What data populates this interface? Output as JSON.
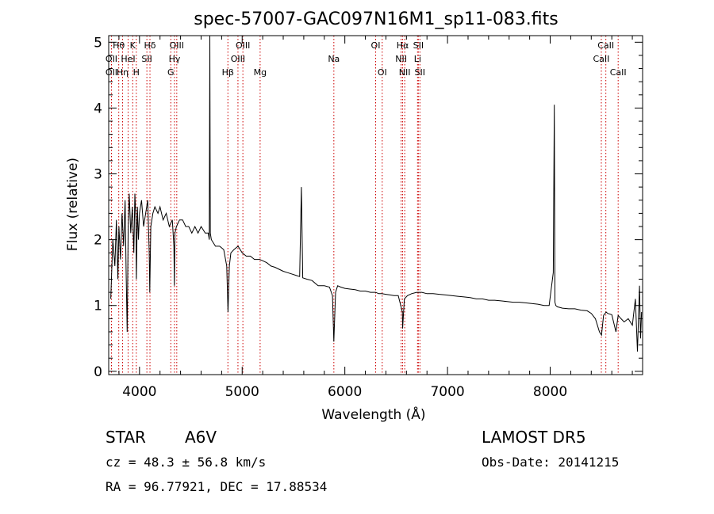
{
  "title": "spec-57007-GAC097N16M1_sp11-083.fits",
  "info": {
    "class_label": "STAR",
    "subclass_label": "A6V",
    "survey": "LAMOST DR5",
    "cz": "cz = 48.3 ± 56.8 km/s",
    "obs_date": "Obs-Date: 20141215",
    "coords": "RA =  96.77921, DEC =  17.88534"
  },
  "colors": {
    "spectrum": "#000000",
    "line_marker": "#cc0000"
  },
  "chart_data": {
    "type": "line",
    "title": "spec-57007-GAC097N16M1_sp11-083.fits",
    "xlabel": "Wavelength (Å)",
    "ylabel": "Flux (relative)",
    "xlim": [
      3700,
      8900
    ],
    "ylim": [
      -0.05,
      5.1
    ],
    "xticks": [
      4000,
      5000,
      6000,
      7000,
      8000
    ],
    "yticks": [
      0,
      1,
      2,
      3,
      4,
      5
    ],
    "grid": false,
    "spectrum": {
      "x": [
        3720,
        3740,
        3760,
        3775,
        3790,
        3800,
        3815,
        3830,
        3845,
        3860,
        3870,
        3880,
        3890,
        3900,
        3915,
        3930,
        3945,
        3955,
        3965,
        3970,
        3980,
        3990,
        4000,
        4020,
        4040,
        4060,
        4080,
        4095,
        4100,
        4110,
        4130,
        4150,
        4180,
        4200,
        4230,
        4260,
        4290,
        4320,
        4335,
        4340,
        4345,
        4360,
        4390,
        4420,
        4450,
        4480,
        4510,
        4540,
        4570,
        4600,
        4640,
        4670,
        4680,
        4685,
        4690,
        4700,
        4740,
        4780,
        4820,
        4850,
        4862,
        4875,
        4890,
        4920,
        4960,
        5000,
        5040,
        5080,
        5120,
        5170,
        5200,
        5240,
        5280,
        5320,
        5360,
        5400,
        5440,
        5480,
        5520,
        5560,
        5577,
        5590,
        5630,
        5680,
        5740,
        5800,
        5850,
        5880,
        5893,
        5910,
        5930,
        5960,
        6000,
        6050,
        6100,
        6150,
        6200,
        6250,
        6300,
        6330,
        6360,
        6400,
        6440,
        6480,
        6520,
        6560,
        6563,
        6580,
        6610,
        6650,
        6700,
        6750,
        6800,
        6860,
        6920,
        6980,
        7040,
        7100,
        7160,
        7220,
        7280,
        7340,
        7400,
        7460,
        7520,
        7580,
        7640,
        7700,
        7760,
        7820,
        7880,
        7940,
        7990,
        8030,
        8040,
        8046,
        8055,
        8070,
        8120,
        8180,
        8240,
        8300,
        8360,
        8400,
        8440,
        8480,
        8500,
        8520,
        8545,
        8560,
        8600,
        8640,
        8662,
        8690,
        8720,
        8760,
        8800,
        8830,
        8850,
        8870,
        8880,
        8890
      ],
      "y": [
        1.1,
        2.0,
        1.6,
        2.3,
        1.4,
        2.2,
        1.7,
        2.4,
        1.9,
        2.6,
        1.5,
        0.6,
        2.2,
        2.7,
        2.1,
        2.5,
        1.8,
        2.7,
        2.3,
        1.4,
        2.5,
        2.0,
        2.4,
        2.6,
        2.2,
        2.4,
        2.6,
        1.8,
        1.2,
        2.2,
        2.4,
        2.5,
        2.4,
        2.5,
        2.3,
        2.4,
        2.2,
        2.3,
        1.9,
        1.3,
        2.1,
        2.2,
        2.3,
        2.3,
        2.2,
        2.2,
        2.1,
        2.2,
        2.1,
        2.2,
        2.1,
        2.1,
        2.0,
        5.1,
        2.1,
        2.0,
        1.9,
        1.9,
        1.85,
        1.6,
        0.9,
        1.6,
        1.8,
        1.85,
        1.9,
        1.8,
        1.75,
        1.75,
        1.7,
        1.7,
        1.68,
        1.65,
        1.6,
        1.58,
        1.55,
        1.52,
        1.5,
        1.48,
        1.46,
        1.44,
        2.8,
        1.42,
        1.4,
        1.38,
        1.3,
        1.3,
        1.28,
        1.15,
        0.45,
        1.2,
        1.3,
        1.28,
        1.26,
        1.25,
        1.24,
        1.22,
        1.22,
        1.2,
        1.2,
        1.18,
        1.18,
        1.17,
        1.16,
        1.15,
        1.15,
        0.9,
        0.65,
        1.1,
        1.15,
        1.18,
        1.2,
        1.2,
        1.18,
        1.18,
        1.17,
        1.16,
        1.15,
        1.14,
        1.13,
        1.12,
        1.1,
        1.1,
        1.08,
        1.08,
        1.07,
        1.06,
        1.05,
        1.05,
        1.04,
        1.03,
        1.02,
        1.0,
        1.0,
        1.5,
        4.05,
        1.05,
        1.0,
        0.98,
        0.96,
        0.95,
        0.95,
        0.93,
        0.92,
        0.88,
        0.8,
        0.6,
        0.55,
        0.85,
        0.9,
        0.88,
        0.86,
        0.6,
        0.85,
        0.8,
        0.75,
        0.8,
        0.7,
        1.1,
        0.3,
        1.3,
        0.5,
        0.9
      ]
    },
    "line_markers": [
      {
        "label": "Hθ",
        "x": 3798,
        "row": 0
      },
      {
        "label": "OII",
        "x": 3727,
        "row": 1
      },
      {
        "label": "OII",
        "x": 3727,
        "row": 2
      },
      {
        "label": "Hη",
        "x": 3835,
        "row": 2
      },
      {
        "label": "HeI",
        "x": 3889,
        "row": 1
      },
      {
        "label": "K",
        "x": 3934,
        "row": 0
      },
      {
        "label": "H",
        "x": 3969,
        "row": 2
      },
      {
        "label": "Hδ",
        "x": 4102,
        "row": 0
      },
      {
        "label": "SII",
        "x": 4072,
        "row": 1
      },
      {
        "label": "OIII",
        "x": 4363,
        "row": 0
      },
      {
        "label": "Hγ",
        "x": 4341,
        "row": 1
      },
      {
        "label": "G",
        "x": 4305,
        "row": 2
      },
      {
        "label": "Hβ",
        "x": 4861,
        "row": 2
      },
      {
        "label": "OIII",
        "x": 5007,
        "row": 0
      },
      {
        "label": "OIII",
        "x": 4959,
        "row": 1
      },
      {
        "label": "Mg",
        "x": 5175,
        "row": 2
      },
      {
        "label": "Na",
        "x": 5893,
        "row": 1
      },
      {
        "label": "OI",
        "x": 6300,
        "row": 0
      },
      {
        "label": "OI",
        "x": 6364,
        "row": 2
      },
      {
        "label": "Hα",
        "x": 6563,
        "row": 0
      },
      {
        "label": "NII",
        "x": 6548,
        "row": 1
      },
      {
        "label": "NII",
        "x": 6583,
        "row": 2
      },
      {
        "label": "SII",
        "x": 6716,
        "row": 0
      },
      {
        "label": "Li",
        "x": 6708,
        "row": 1
      },
      {
        "label": "SII",
        "x": 6731,
        "row": 2
      },
      {
        "label": "CaII",
        "x": 8542,
        "row": 0
      },
      {
        "label": "CaII",
        "x": 8498,
        "row": 1
      },
      {
        "label": "CaII",
        "x": 8662,
        "row": 2
      }
    ]
  }
}
